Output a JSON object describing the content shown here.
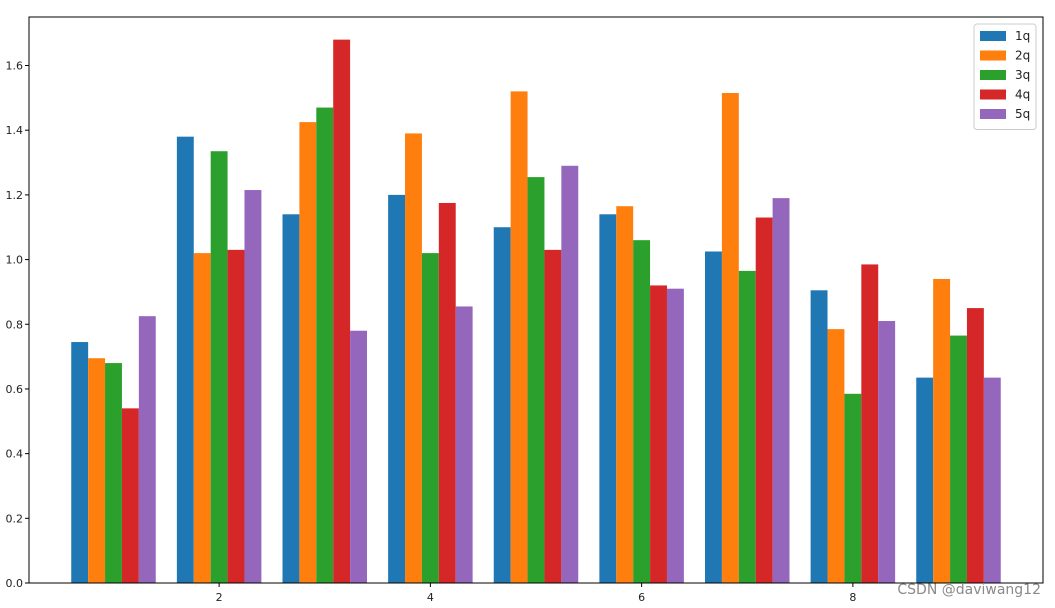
{
  "chart_data": {
    "type": "bar",
    "title": "",
    "xlabel": "",
    "ylabel": "",
    "x": [
      1,
      2,
      3,
      4,
      5,
      6,
      7,
      8,
      9
    ],
    "xticks": [
      "2",
      "4",
      "6",
      "8"
    ],
    "xtick_values": [
      2,
      4,
      6,
      8
    ],
    "yticks": [
      "0.0",
      "0.2",
      "0.4",
      "0.6",
      "0.8",
      "1.0",
      "1.2",
      "1.4",
      "1.6"
    ],
    "ylim": [
      0,
      1.75
    ],
    "grid": false,
    "legend_position": "top-right",
    "series": [
      {
        "name": "1q",
        "color": "#1f77b4",
        "values": [
          0.745,
          1.38,
          1.14,
          1.2,
          1.1,
          1.14,
          1.025,
          0.905,
          0.635
        ]
      },
      {
        "name": "2q",
        "color": "#ff7f0e",
        "values": [
          0.695,
          1.02,
          1.425,
          1.39,
          1.52,
          1.165,
          1.515,
          0.785,
          0.94
        ]
      },
      {
        "name": "3q",
        "color": "#2ca02c",
        "values": [
          0.68,
          1.335,
          1.47,
          1.02,
          1.255,
          1.06,
          0.965,
          0.585,
          0.765
        ]
      },
      {
        "name": "4q",
        "color": "#d62728",
        "values": [
          0.54,
          1.03,
          1.68,
          1.175,
          1.03,
          0.92,
          1.13,
          0.985,
          0.85
        ]
      },
      {
        "name": "5q",
        "color": "#9467bd",
        "values": [
          0.825,
          1.215,
          0.78,
          0.855,
          1.29,
          0.91,
          1.19,
          0.81,
          0.635
        ]
      }
    ]
  },
  "watermark": "CSDN @daviwang12"
}
